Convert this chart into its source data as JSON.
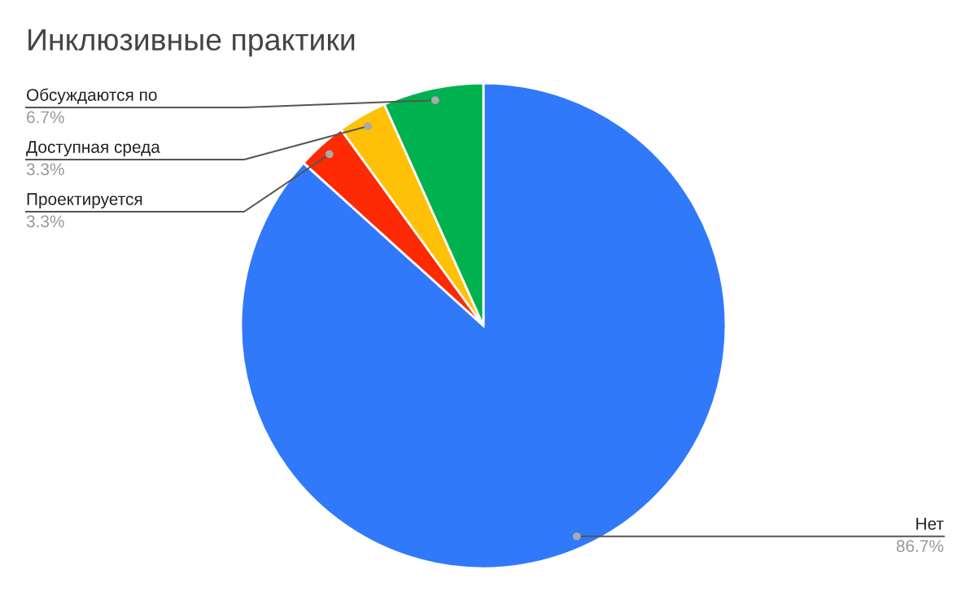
{
  "chart_data": {
    "type": "pie",
    "title": "Инклюзивные практики",
    "categories": [
      "Нет",
      "Проектируется",
      "Доступная среда",
      "Обсуждаются по"
    ],
    "values": [
      86.7,
      3.3,
      3.3,
      6.7
    ],
    "colors": [
      "#3179fb",
      "#fd2a04",
      "#ffc107",
      "#00b14f"
    ],
    "value_labels": [
      "86.7%",
      "3.3%",
      "3.3%",
      "6.7%"
    ]
  }
}
